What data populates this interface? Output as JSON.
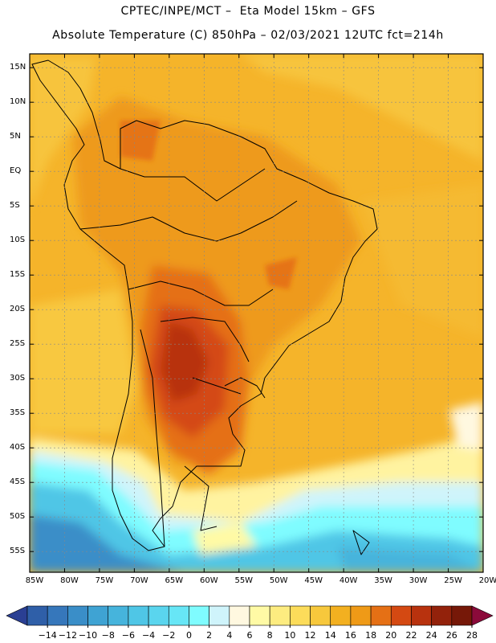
{
  "header": {
    "line1": "CPTEC/INPE/MCT –  Eta Model 15km – GFS",
    "line2": "Absolute Temperature (C) 850hPa – 02/03/2021 12UTC fct=214h"
  },
  "map": {
    "lat_labels": [
      "15N",
      "10N",
      "5N",
      "EQ",
      "5S",
      "10S",
      "15S",
      "20S",
      "25S",
      "30S",
      "35S",
      "40S",
      "45S",
      "50S",
      "55S"
    ],
    "lon_labels": [
      "85W",
      "80W",
      "75W",
      "70W",
      "65W",
      "60W",
      "55W",
      "50W",
      "45W",
      "40W",
      "35W",
      "30W",
      "25W",
      "20W"
    ],
    "lat_range": [
      17,
      -58
    ],
    "lon_range": [
      -85,
      -20
    ],
    "grid_lines": true
  },
  "colorbar": {
    "labels": [
      "−14",
      "−12",
      "−10",
      "−8",
      "−6",
      "−4",
      "−2",
      "0",
      "2",
      "4",
      "6",
      "8",
      "10",
      "12",
      "14",
      "16",
      "18",
      "20",
      "22",
      "24",
      "26",
      "28"
    ],
    "colors": [
      "#2a3f93",
      "#2f5fa8",
      "#3677bb",
      "#3a8ec8",
      "#3fa3d3",
      "#46b4dc",
      "#4fc6e6",
      "#5ad5ee",
      "#67e6f6",
      "#7ffcff",
      "#cff4fb",
      "#fff8e0",
      "#fffaa5",
      "#fdec80",
      "#fcdc5a",
      "#f7c83c",
      "#f3b020",
      "#ef9a17",
      "#e57015",
      "#d44912",
      "#b8320e",
      "#93220b",
      "#761808",
      "#8b0a3a"
    ],
    "unit": "C"
  }
}
